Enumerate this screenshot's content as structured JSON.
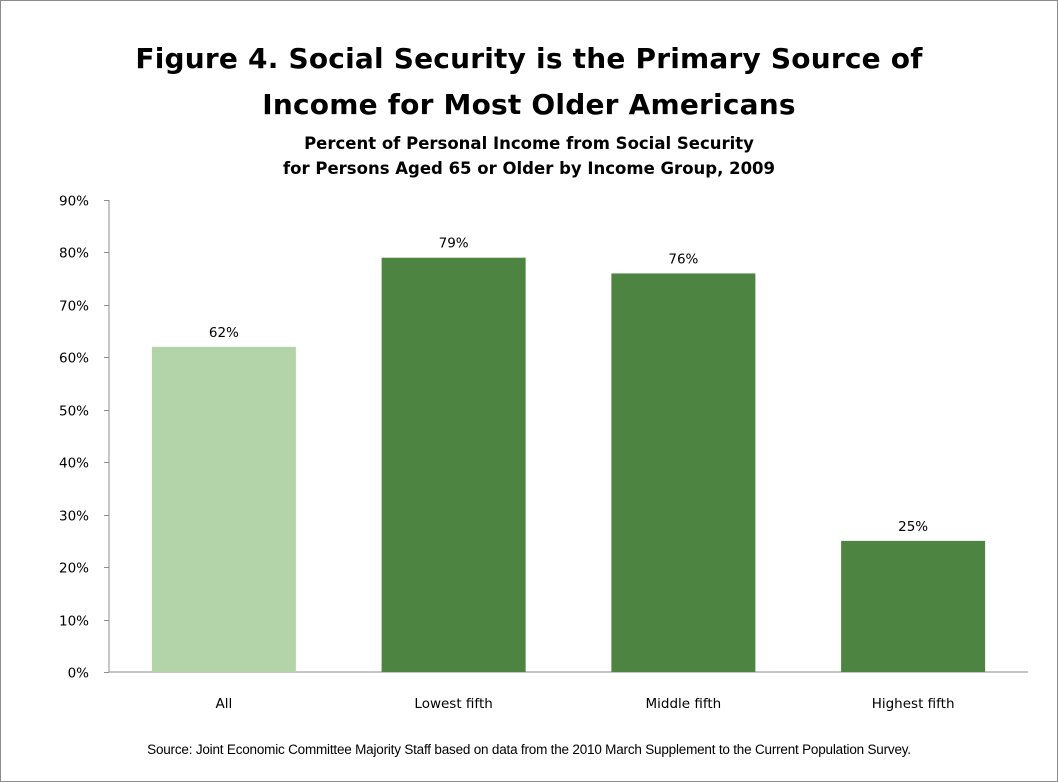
{
  "chart_data": {
    "type": "bar",
    "title": "Figure 4. Social Security is the Primary Source of Income for Most Older Americans",
    "title_lines": [
      "Figure 4. Social Security is the Primary Source of",
      "Income for Most Older Americans"
    ],
    "subtitle_lines": [
      "Percent of Personal Income from Social Security",
      "for Persons Aged 65 or Older by Income Group, 2009"
    ],
    "categories": [
      "All",
      "Lowest fifth",
      "Middle fifth",
      "Highest fifth"
    ],
    "values": [
      62,
      79,
      76,
      25
    ],
    "value_labels": [
      "62%",
      "79%",
      "76%",
      "25%"
    ],
    "bar_colors": [
      "#b3d4a9",
      "#4e8441",
      "#4e8441",
      "#4e8441"
    ],
    "ylim": [
      0,
      90
    ],
    "yticks": [
      0,
      10,
      20,
      30,
      40,
      50,
      60,
      70,
      80,
      90
    ],
    "ytick_labels": [
      "0%",
      "10%",
      "20%",
      "30%",
      "40%",
      "50%",
      "60%",
      "70%",
      "80%",
      "90%"
    ],
    "xlabel": "",
    "ylabel": "",
    "grid": false,
    "legend": "none",
    "source": "Source: Joint Economic Committee Majority Staff based on data from the 2010 March Supplement to the Current Population Survey."
  }
}
